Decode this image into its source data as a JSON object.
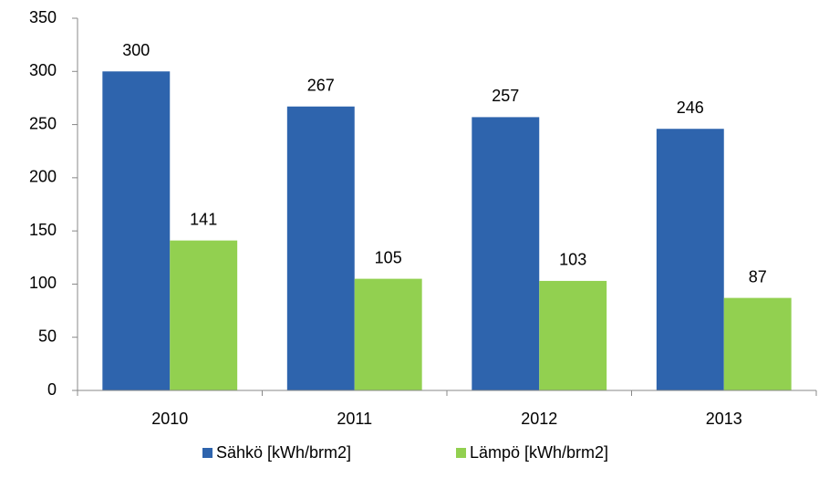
{
  "chart_data": {
    "type": "bar",
    "categories": [
      "2010",
      "2011",
      "2012",
      "2013"
    ],
    "series": [
      {
        "name": "Sähkö [kWh/brm2]",
        "color": "#2e64ad",
        "values": [
          300,
          267,
          257,
          246
        ]
      },
      {
        "name": "Lämpö [kWh/brm2]",
        "color": "#92d050",
        "values": [
          141,
          105,
          103,
          87
        ]
      }
    ],
    "ylim": [
      0,
      350
    ],
    "yticks": [
      0,
      50,
      100,
      150,
      200,
      250,
      300,
      350
    ],
    "grid": false,
    "legend": "bottom"
  }
}
